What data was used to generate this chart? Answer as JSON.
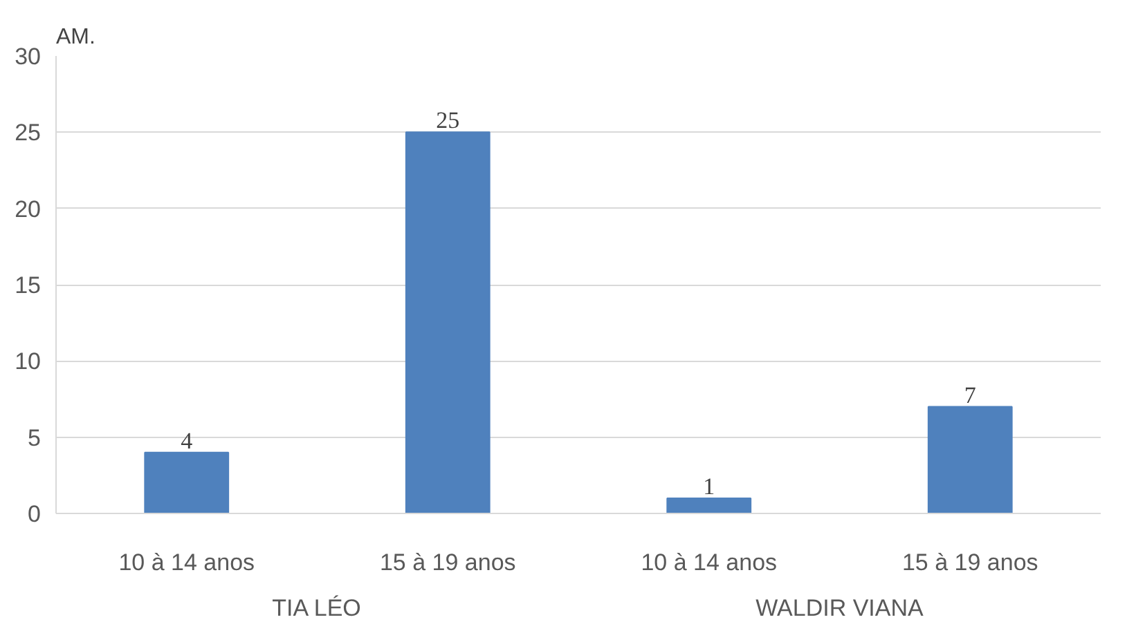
{
  "chart_data": {
    "type": "bar",
    "title": "AM.",
    "categories": [
      "10 à 14 anos",
      "15 à 19 anos",
      "10 à 14 anos",
      "15 à 19 anos"
    ],
    "values": [
      4,
      25,
      1,
      7
    ],
    "color": "#4f81bd",
    "ylim": [
      0,
      30
    ],
    "yticks": [
      0,
      5,
      10,
      15,
      20,
      25,
      30
    ],
    "grid": "y",
    "data_labels": true,
    "annotations": [
      "TIA LÉO",
      "WALDIR VIANA"
    ]
  }
}
